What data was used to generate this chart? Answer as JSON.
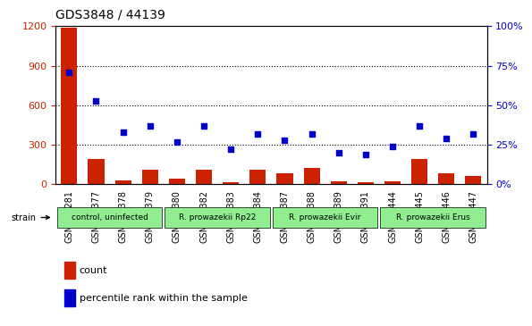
{
  "title": "GDS3848 / 44139",
  "samples": [
    "GSM403281",
    "GSM403377",
    "GSM403378",
    "GSM403379",
    "GSM403380",
    "GSM403382",
    "GSM403383",
    "GSM403384",
    "GSM403387",
    "GSM403388",
    "GSM403389",
    "GSM403391",
    "GSM403444",
    "GSM403445",
    "GSM403446",
    "GSM403447"
  ],
  "counts": [
    1190,
    195,
    30,
    110,
    40,
    110,
    15,
    110,
    85,
    125,
    20,
    15,
    20,
    190,
    85,
    60
  ],
  "percentiles": [
    71,
    53,
    33,
    37,
    27,
    37,
    22,
    32,
    28,
    32,
    20,
    19,
    24,
    37,
    29,
    32
  ],
  "groups": [
    {
      "label": "control, uninfected",
      "start": 0,
      "end": 4,
      "color": "#90ee90"
    },
    {
      "label": "R. prowazekii Rp22",
      "start": 4,
      "end": 8,
      "color": "#90ee90"
    },
    {
      "label": "R. prowazekii Evir",
      "start": 8,
      "end": 12,
      "color": "#90ee90"
    },
    {
      "label": "R. prowazekii Erus",
      "start": 12,
      "end": 16,
      "color": "#90ee90"
    }
  ],
  "ylim_left": [
    0,
    1200
  ],
  "ylim_right": [
    0,
    100
  ],
  "yticks_left": [
    0,
    300,
    600,
    900,
    1200
  ],
  "yticks_right": [
    0,
    25,
    50,
    75,
    100
  ],
  "bar_color": "#cc2200",
  "dot_color": "#0000cc",
  "grid_color": "#000000",
  "legend_count_color": "#cc2200",
  "legend_percentile_color": "#0000cc",
  "strain_label": "strain",
  "xlabel_count": "count",
  "xlabel_percentile": "percentile rank within the sample",
  "bar_width": 0.6
}
